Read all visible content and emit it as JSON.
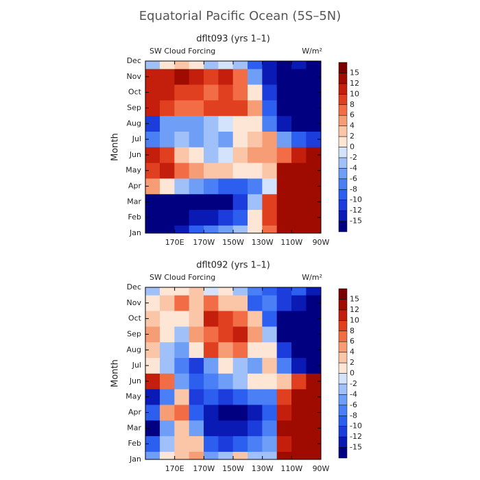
{
  "title": "Equatorial Pacific Ocean (5S–5N)",
  "chart_data": [
    {
      "type": "contour",
      "title": "dflt093 (yrs 1–1)",
      "subtitle": "SW Cloud Forcing",
      "units": "W/m²",
      "ylabel": "Month",
      "categories": [
        "Jan",
        "Feb",
        "Mar",
        "Apr",
        "May",
        "Jun",
        "Jul",
        "Aug",
        "Sep",
        "Oct",
        "Nov",
        "Dec"
      ],
      "x": [
        155,
        165,
        175,
        185,
        195,
        205,
        215,
        225,
        235,
        245,
        255,
        265
      ],
      "xlim": [
        150,
        270
      ],
      "xticks": [
        {
          "value": 170,
          "label": "170E"
        },
        {
          "value": 190,
          "label": "170W"
        },
        {
          "value": 210,
          "label": "150W"
        },
        {
          "value": 230,
          "label": "130W"
        },
        {
          "value": 250,
          "label": "110W"
        },
        {
          "value": 270,
          "label": "90W"
        }
      ],
      "levels": [
        -15,
        -12,
        -10,
        -8,
        -6,
        -4,
        -2,
        0,
        2,
        4,
        6,
        8,
        10,
        12,
        15
      ],
      "colors": [
        "#000080",
        "#0a1ab4",
        "#1c3cdc",
        "#2c5ff0",
        "#4a7ff5",
        "#6f9ef7",
        "#9fc0f8",
        "#d3e3fb",
        "#fde6d6",
        "#fbc6a8",
        "#f79d76",
        "#f26c45",
        "#e0401f",
        "#c41e0c",
        "#a00b00",
        "#7a0000"
      ],
      "z": [
        [
          -15,
          -15,
          -12,
          -8,
          -6,
          -4,
          -2,
          2,
          8,
          15,
          15,
          15
        ],
        [
          -15,
          -15,
          -15,
          -12,
          -12,
          -10,
          -8,
          2,
          10,
          15,
          15,
          15
        ],
        [
          -15,
          -15,
          -15,
          -15,
          -15,
          -15,
          -10,
          -2,
          10,
          15,
          15,
          15
        ],
        [
          6,
          2,
          -2,
          -4,
          -6,
          -8,
          -8,
          -6,
          0,
          15,
          15,
          15
        ],
        [
          10,
          12,
          8,
          6,
          4,
          4,
          2,
          2,
          4,
          15,
          15,
          15
        ],
        [
          12,
          10,
          4,
          2,
          -2,
          0,
          4,
          6,
          6,
          8,
          12,
          15
        ],
        [
          -6,
          -4,
          -2,
          -4,
          -2,
          -4,
          2,
          4,
          6,
          -4,
          -8,
          -10
        ],
        [
          -10,
          -4,
          -4,
          -4,
          -2,
          0,
          2,
          2,
          -6,
          -12,
          -15,
          -15
        ],
        [
          12,
          10,
          8,
          8,
          10,
          10,
          10,
          6,
          -8,
          -15,
          -15,
          -15
        ],
        [
          12,
          12,
          10,
          10,
          8,
          10,
          8,
          2,
          -10,
          -15,
          -15,
          -15
        ],
        [
          12,
          12,
          15,
          12,
          10,
          12,
          8,
          -4,
          -12,
          -15,
          -15,
          -15
        ],
        [
          -2,
          2,
          4,
          2,
          -2,
          0,
          -2,
          -8,
          -12,
          -15,
          -12,
          -15
        ]
      ]
    },
    {
      "type": "contour",
      "title": "dflt092 (yrs 1–1)",
      "subtitle": "SW Cloud Forcing",
      "units": "W/m²",
      "ylabel": "Month",
      "categories": [
        "Jan",
        "Feb",
        "Mar",
        "Apr",
        "May",
        "Jun",
        "Jul",
        "Aug",
        "Sep",
        "Oct",
        "Nov",
        "Dec"
      ],
      "x": [
        155,
        165,
        175,
        185,
        195,
        205,
        215,
        225,
        235,
        245,
        255,
        265
      ],
      "xlim": [
        150,
        270
      ],
      "xticks": [
        {
          "value": 170,
          "label": "170E"
        },
        {
          "value": 190,
          "label": "170W"
        },
        {
          "value": 210,
          "label": "150W"
        },
        {
          "value": 230,
          "label": "130W"
        },
        {
          "value": 250,
          "label": "110W"
        },
        {
          "value": 270,
          "label": "90W"
        }
      ],
      "levels": [
        -15,
        -12,
        -10,
        -8,
        -6,
        -4,
        -2,
        0,
        2,
        4,
        6,
        8,
        10,
        12,
        15
      ],
      "colors": [
        "#000080",
        "#0a1ab4",
        "#1c3cdc",
        "#2c5ff0",
        "#4a7ff5",
        "#6f9ef7",
        "#9fc0f8",
        "#d3e3fb",
        "#fde6d6",
        "#fbc6a8",
        "#f79d76",
        "#f26c45",
        "#e0401f",
        "#c41e0c",
        "#a00b00",
        "#7a0000"
      ],
      "z": [
        [
          -4,
          2,
          4,
          6,
          -4,
          -2,
          4,
          -2,
          -2,
          15,
          15,
          15
        ],
        [
          -8,
          -2,
          4,
          4,
          -8,
          -10,
          -8,
          -6,
          -4,
          12,
          15,
          15
        ],
        [
          -15,
          -4,
          4,
          -4,
          -12,
          -12,
          -12,
          -10,
          -6,
          15,
          15,
          15
        ],
        [
          -8,
          6,
          8,
          -8,
          -12,
          -15,
          -15,
          -12,
          -8,
          12,
          15,
          15
        ],
        [
          -12,
          -6,
          4,
          -10,
          -8,
          -10,
          -8,
          -6,
          -6,
          10,
          15,
          15
        ],
        [
          12,
          8,
          -4,
          -8,
          -6,
          -4,
          -2,
          2,
          2,
          4,
          10,
          15
        ],
        [
          2,
          -2,
          -6,
          -10,
          -4,
          2,
          -2,
          -4,
          4,
          -6,
          -12,
          -15
        ],
        [
          4,
          -2,
          -4,
          2,
          10,
          6,
          8,
          2,
          2,
          -10,
          -15,
          -15
        ],
        [
          6,
          2,
          -2,
          6,
          8,
          10,
          12,
          6,
          -2,
          -15,
          -15,
          -15
        ],
        [
          4,
          2,
          2,
          4,
          12,
          10,
          8,
          4,
          -8,
          -15,
          -15,
          -15
        ],
        [
          2,
          4,
          8,
          4,
          8,
          4,
          4,
          -8,
          -6,
          -10,
          -12,
          -15
        ],
        [
          -2,
          2,
          2,
          4,
          0,
          2,
          -2,
          -6,
          -8,
          -10,
          -8,
          -12
        ]
      ]
    }
  ]
}
